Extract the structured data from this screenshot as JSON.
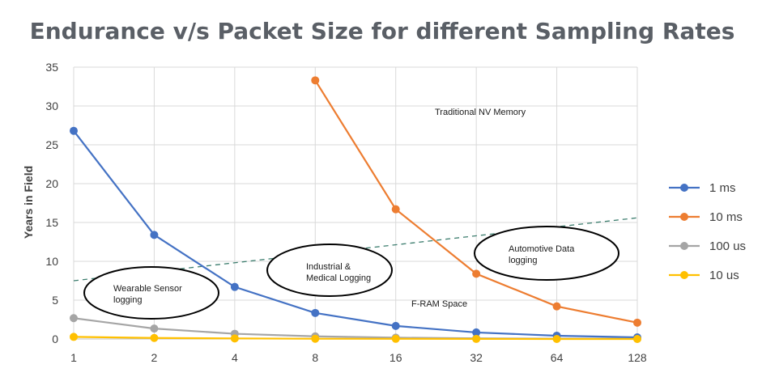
{
  "chart_data": {
    "type": "line",
    "title": "Endurance v/s Packet Size for different Sampling Rates",
    "xlabel": "",
    "ylabel": "Years in Field",
    "categories": [
      "1",
      "2",
      "4",
      "8",
      "16",
      "32",
      "64",
      "128"
    ],
    "ylim": [
      0,
      35
    ],
    "yticks": [
      0,
      5,
      10,
      15,
      20,
      25,
      30,
      35
    ],
    "grid": true,
    "legend_position": "right",
    "series": [
      {
        "name": "1 ms",
        "color": "#4472c4",
        "values": [
          26.8,
          13.4,
          6.7,
          3.35,
          1.68,
          0.84,
          0.42,
          0.21
        ]
      },
      {
        "name": "10 ms",
        "color": "#ed7d31",
        "values": [
          null,
          null,
          null,
          33.3,
          16.7,
          8.4,
          4.2,
          2.1
        ]
      },
      {
        "name": "100 us",
        "color": "#a5a5a5",
        "values": [
          2.68,
          1.34,
          0.67,
          0.34,
          0.17,
          0.08,
          0.04,
          0.02
        ]
      },
      {
        "name": "10 us",
        "color": "#ffc000",
        "values": [
          0.27,
          0.13,
          0.07,
          0.03,
          0.02,
          0.01,
          0.0,
          0.0
        ]
      }
    ],
    "trend_line": {
      "start": 7.5,
      "end": 15.6,
      "color": "#3c7d6e"
    },
    "annotations": {
      "traditional": "Traditional NV Memory",
      "fram": "F-RAM Space",
      "wearable": [
        "Wearable Sensor",
        "logging"
      ],
      "industrial": [
        "Industrial &",
        "Medical Logging"
      ],
      "automotive": [
        "Automotive Data",
        "logging"
      ]
    }
  }
}
